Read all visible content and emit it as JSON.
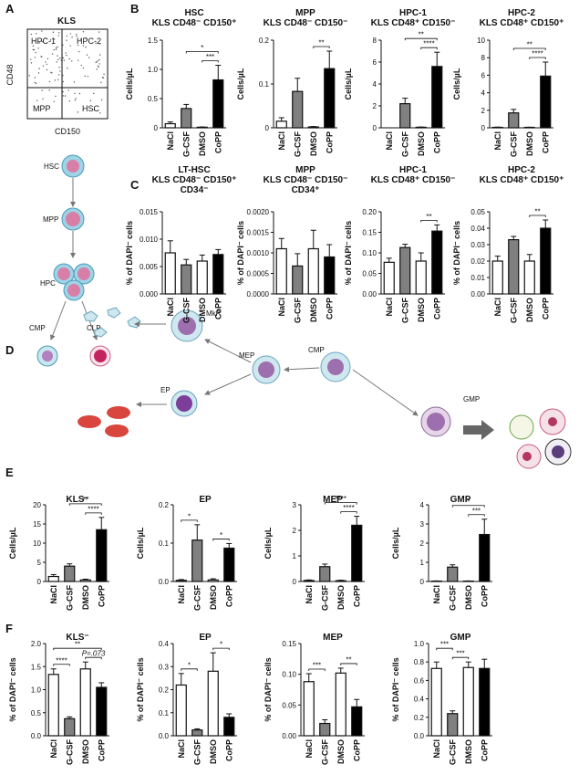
{
  "panel_a": {
    "panel": "A",
    "title": "KLS",
    "quadrants": [
      "HPC-1",
      "HPC-2",
      "MPP",
      "HSC"
    ],
    "y_label": "CD48",
    "x_label": "CD150",
    "hierarchy": [
      "HSC",
      "MPP",
      "HPC",
      "CMP",
      "CLP"
    ]
  },
  "panel_d": {
    "panel": "D",
    "cells": [
      "MkP",
      "MEP",
      "CMP",
      "EP",
      "GMP"
    ]
  },
  "chart_data": [
    {
      "type": "bar",
      "panel": "B",
      "title": [
        "HSC",
        "KLS CD48⁻ CD150⁺"
      ],
      "y_label": "Cells/µL",
      "categories": [
        "NaCl",
        "G-CSF",
        "DMSO",
        "CoPP"
      ],
      "values": [
        0.07,
        0.33,
        0.01,
        0.82
      ],
      "errors": [
        0.03,
        0.07,
        0.005,
        0.25
      ],
      "colors": [
        "#ffffff",
        "#808080",
        "#ffffff",
        "#000000"
      ],
      "ylim": [
        0,
        1.5
      ],
      "yticks": [
        0,
        0.5,
        {
          "value": 1,
          "label": "1.0"
        },
        1.5
      ],
      "significance": [
        {
          "label": "*",
          "pair": [
            "G-CSF",
            "CoPP"
          ]
        },
        {
          "label": "***",
          "pair": [
            "DMSO",
            "CoPP"
          ]
        }
      ]
    },
    {
      "type": "bar",
      "title": [
        "MPP",
        "KLS CD48⁻ CD150⁻"
      ],
      "y_label": "Cells/µL",
      "categories": [
        "NaCl",
        "G-CSF",
        "DMSO",
        "CoPP"
      ],
      "values": [
        0.015,
        0.083,
        0.002,
        0.135
      ],
      "errors": [
        0.008,
        0.03,
        0.001,
        0.04
      ],
      "colors": [
        "#ffffff",
        "#808080",
        "#ffffff",
        "#000000"
      ],
      "ylim": [
        0,
        0.2
      ],
      "yticks": [
        0,
        0.1,
        0.2
      ],
      "significance": [
        {
          "label": "**",
          "pair": [
            "DMSO",
            "CoPP"
          ]
        }
      ]
    },
    {
      "type": "bar",
      "title": [
        "HPC-1",
        "KLS CD48⁺ CD150⁻"
      ],
      "y_label": "Cells/µL",
      "categories": [
        "NaCl",
        "G-CSF",
        "DMSO",
        "CoPP"
      ],
      "values": [
        0,
        2.2,
        0.05,
        5.6
      ],
      "errors": [
        0,
        0.5,
        0.02,
        1.3
      ],
      "colors": [
        "#ffffff",
        "#808080",
        "#ffffff",
        "#000000"
      ],
      "ylim": [
        0,
        8
      ],
      "yticks": [
        0,
        2,
        4,
        6,
        8
      ],
      "significance": [
        {
          "label": "**",
          "pair": [
            "G-CSF",
            "CoPP"
          ]
        },
        {
          "label": "****",
          "pair": [
            "DMSO",
            "CoPP"
          ]
        }
      ]
    },
    {
      "type": "bar",
      "title": [
        "HPC-2",
        "KLS CD48⁺ CD150⁺"
      ],
      "y_label": "Cells/µL",
      "categories": [
        "NaCl",
        "G-CSF",
        "DMSO",
        "CoPP"
      ],
      "values": [
        0.05,
        1.7,
        0.05,
        5.9
      ],
      "errors": [
        0.03,
        0.4,
        0.02,
        1.6
      ],
      "colors": [
        "#ffffff",
        "#808080",
        "#ffffff",
        "#000000"
      ],
      "ylim": [
        0,
        10
      ],
      "yticks": [
        0,
        2,
        4,
        6,
        8,
        10
      ],
      "significance": [
        {
          "label": "**",
          "pair": [
            "G-CSF",
            "CoPP"
          ]
        },
        {
          "label": "****",
          "pair": [
            "DMSO",
            "CoPP"
          ]
        }
      ]
    },
    {
      "type": "bar",
      "panel": "C",
      "title": [
        "LT-HSC",
        "KLS CD48⁻ CD150⁺",
        "CD34⁻"
      ],
      "y_label": "% of DAPI⁻ cells",
      "categories": [
        "NaCl",
        "G-CSF",
        "DMSO",
        "CoPP"
      ],
      "values": [
        0.0075,
        0.0053,
        0.006,
        0.0072
      ],
      "errors": [
        0.0022,
        0.001,
        0.0011,
        0.0009
      ],
      "colors": [
        "#ffffff",
        "#808080",
        "#ffffff",
        "#000000"
      ],
      "ylim": [
        0,
        0.015
      ],
      "yticks": [
        {
          "value": 0,
          "label": "0.000"
        },
        0.005,
        {
          "value": 0.01,
          "label": "0.010"
        },
        0.015
      ],
      "significance": []
    },
    {
      "type": "bar",
      "title": [
        "MPP",
        "KLS CD48⁻ CD150⁻",
        "CD34⁺"
      ],
      "y_label": "% of DAPI⁻ cells",
      "categories": [
        "NaCl",
        "G-CSF",
        "DMSO",
        "CoPP"
      ],
      "values": [
        0.0011,
        0.00068,
        0.0011,
        0.0009
      ],
      "errors": [
        0.00025,
        0.0003,
        0.00045,
        0.0003
      ],
      "colors": [
        "#ffffff",
        "#808080",
        "#ffffff",
        "#000000"
      ],
      "ylim": [
        0,
        0.002
      ],
      "yticks": [
        {
          "value": 0,
          "label": "0.0000"
        },
        0.0005,
        {
          "value": 0.001,
          "label": "0.0010"
        },
        0.0015,
        {
          "value": 0.002,
          "label": "0.0020"
        }
      ],
      "significance": []
    },
    {
      "type": "bar",
      "title": [
        "HPC-1",
        "KLS CD48⁺ CD150⁻"
      ],
      "y_label": "% of DAPI⁻ cells",
      "categories": [
        "NaCl",
        "G-CSF",
        "DMSO",
        "CoPP"
      ],
      "values": [
        0.077,
        0.113,
        0.08,
        0.153
      ],
      "errors": [
        0.01,
        0.008,
        0.02,
        0.015
      ],
      "colors": [
        "#ffffff",
        "#808080",
        "#ffffff",
        "#000000"
      ],
      "ylim": [
        0,
        0.2
      ],
      "yticks": [
        {
          "value": 0,
          "label": "0.00"
        },
        0.05,
        {
          "value": 0.1,
          "label": "0.10"
        },
        0.15,
        {
          "value": 0.2,
          "label": "0.20"
        }
      ],
      "significance": [
        {
          "label": "**",
          "pair": [
            "DMSO",
            "CoPP"
          ]
        }
      ]
    },
    {
      "type": "bar",
      "title": [
        "HPC-2",
        "KLS CD48⁺ CD150⁺"
      ],
      "y_label": "% of DAPI⁻ cells",
      "categories": [
        "NaCl",
        "G-CSF",
        "DMSO",
        "CoPP"
      ],
      "values": [
        0.02,
        0.033,
        0.02,
        0.04
      ],
      "errors": [
        0.003,
        0.002,
        0.004,
        0.005
      ],
      "colors": [
        "#ffffff",
        "#808080",
        "#ffffff",
        "#000000"
      ],
      "ylim": [
        0,
        0.05
      ],
      "yticks": [
        {
          "value": 0,
          "label": "0.00"
        },
        0.01,
        0.02,
        0.03,
        0.04,
        0.05
      ],
      "significance": [
        {
          "label": "**",
          "pair": [
            "DMSO",
            "CoPP"
          ]
        }
      ]
    },
    {
      "type": "bar",
      "panel": "E",
      "title": [
        "KLS⁻"
      ],
      "y_label": "Cells/µL",
      "categories": [
        "NaCl",
        "G-CSF",
        "DMSO",
        "CoPP"
      ],
      "values": [
        1.3,
        4.0,
        0.4,
        13.5
      ],
      "errors": [
        0.5,
        0.6,
        0.2,
        3.2
      ],
      "colors": [
        "#ffffff",
        "#808080",
        "#ffffff",
        "#000000"
      ],
      "ylim": [
        0,
        20
      ],
      "yticks": [
        0,
        5,
        10,
        15,
        20
      ],
      "significance": [
        {
          "label": "**",
          "pair": [
            "G-CSF",
            "CoPP"
          ]
        },
        {
          "label": "****",
          "pair": [
            "DMSO",
            "CoPP"
          ]
        }
      ]
    },
    {
      "type": "bar",
      "title": [
        "EP"
      ],
      "y_label": "Cells/µL",
      "categories": [
        "NaCl",
        "G-CSF",
        "DMSO",
        "CoPP"
      ],
      "values": [
        0.003,
        0.108,
        0.004,
        0.087
      ],
      "errors": [
        0.002,
        0.04,
        0.003,
        0.012
      ],
      "colors": [
        "#ffffff",
        "#808080",
        "#ffffff",
        "#000000"
      ],
      "ylim": [
        0,
        0.2
      ],
      "yticks": [
        {
          "value": 0,
          "label": "0.0"
        },
        0.1,
        0.2
      ],
      "significance": [
        {
          "label": "*",
          "pair": [
            "NaCl",
            "G-CSF"
          ]
        },
        {
          "label": "*",
          "pair": [
            "DMSO",
            "CoPP"
          ]
        }
      ]
    },
    {
      "type": "bar",
      "title": [
        "MEP"
      ],
      "y_label": "Cells/µL",
      "categories": [
        "NaCl",
        "G-CSF",
        "DMSO",
        "CoPP"
      ],
      "values": [
        0.04,
        0.58,
        0.03,
        2.2
      ],
      "errors": [
        0.02,
        0.1,
        0.02,
        0.35
      ],
      "colors": [
        "#ffffff",
        "#808080",
        "#ffffff",
        "#000000"
      ],
      "ylim": [
        0,
        3
      ],
      "yticks": [
        0,
        1,
        2,
        3
      ],
      "significance": [
        {
          "label": "****",
          "pair": [
            "G-CSF",
            "CoPP"
          ]
        },
        {
          "label": "****",
          "pair": [
            "DMSO",
            "CoPP"
          ]
        }
      ]
    },
    {
      "type": "bar",
      "title": [
        "GMP"
      ],
      "y_label": "Cells/µL",
      "categories": [
        "NaCl",
        "G-CSF",
        "DMSO",
        "CoPP"
      ],
      "values": [
        0.02,
        0.75,
        0.02,
        2.45
      ],
      "errors": [
        0.01,
        0.12,
        0.01,
        0.8
      ],
      "colors": [
        "#ffffff",
        "#808080",
        "#ffffff",
        "#000000"
      ],
      "ylim": [
        0,
        4
      ],
      "yticks": [
        0,
        1,
        2,
        3,
        4
      ],
      "significance": [
        {
          "label": "*",
          "pair": [
            "G-CSF",
            "CoPP"
          ]
        },
        {
          "label": "***",
          "pair": [
            "DMSO",
            "CoPP"
          ]
        }
      ]
    },
    {
      "type": "bar",
      "panel": "F",
      "title": [
        "KLS⁻"
      ],
      "y_label": "% of DAPI⁻ cells",
      "categories": [
        "NaCl",
        "G-CSF",
        "DMSO",
        "CoPP"
      ],
      "values": [
        1.33,
        0.37,
        1.45,
        1.05
      ],
      "errors": [
        0.12,
        0.04,
        0.15,
        0.1
      ],
      "colors": [
        "#ffffff",
        "#808080",
        "#ffffff",
        "#000000"
      ],
      "ylim": [
        0,
        2
      ],
      "yticks": [
        {
          "value": 0,
          "label": "0.0"
        },
        0.5,
        {
          "value": 1,
          "label": "1.0"
        },
        1.5,
        {
          "value": 2,
          "label": "2.0"
        }
      ],
      "significance": [
        {
          "label": "**",
          "pair": [
            "NaCl",
            "CoPP"
          ]
        },
        {
          "label": "****",
          "pair": [
            "NaCl",
            "G-CSF"
          ]
        },
        {
          "label": "P=.073",
          "pair": [
            "DMSO",
            "CoPP"
          ]
        }
      ]
    },
    {
      "type": "bar",
      "title": [
        "EP"
      ],
      "y_label": "% of DAPI⁻ cells",
      "categories": [
        "NaCl",
        "G-CSF",
        "DMSO",
        "CoPP"
      ],
      "values": [
        0.22,
        0.025,
        0.28,
        0.08
      ],
      "errors": [
        0.05,
        0.005,
        0.08,
        0.015
      ],
      "colors": [
        "#ffffff",
        "#808080",
        "#ffffff",
        "#000000"
      ],
      "ylim": [
        0,
        0.4
      ],
      "yticks": [
        {
          "value": 0,
          "label": "0.0"
        },
        0.1,
        0.2,
        0.3,
        0.4
      ],
      "significance": [
        {
          "label": "*",
          "pair": [
            "NaCl",
            "G-CSF"
          ]
        },
        {
          "label": "*",
          "pair": [
            "DMSO",
            "CoPP"
          ]
        }
      ]
    },
    {
      "type": "bar",
      "title": [
        "MEP"
      ],
      "y_label": "% of DAPI⁻ cells",
      "categories": [
        "NaCl",
        "G-CSF",
        "DMSO",
        "CoPP"
      ],
      "values": [
        0.088,
        0.02,
        0.102,
        0.047
      ],
      "errors": [
        0.013,
        0.006,
        0.008,
        0.012
      ],
      "colors": [
        "#ffffff",
        "#808080",
        "#ffffff",
        "#000000"
      ],
      "ylim": [
        0,
        0.15
      ],
      "yticks": [
        {
          "value": 0,
          "label": "0.00"
        },
        0.05,
        {
          "value": 0.1,
          "label": "0.10"
        },
        0.15
      ],
      "significance": [
        {
          "label": "***",
          "pair": [
            "NaCl",
            "G-CSF"
          ]
        },
        {
          "label": "**",
          "pair": [
            "DMSO",
            "CoPP"
          ]
        }
      ]
    },
    {
      "type": "bar",
      "title": [
        "GMP"
      ],
      "y_label": "% of DAPI⁻ cells",
      "categories": [
        "NaCl",
        "G-CSF",
        "DMSO",
        "CoPP"
      ],
      "values": [
        0.73,
        0.24,
        0.74,
        0.73
      ],
      "errors": [
        0.07,
        0.03,
        0.06,
        0.1
      ],
      "colors": [
        "#ffffff",
        "#808080",
        "#ffffff",
        "#000000"
      ],
      "ylim": [
        0,
        1
      ],
      "yticks": [
        {
          "value": 0,
          "label": "0.0"
        },
        0.2,
        0.4,
        0.6,
        0.8,
        {
          "value": 1,
          "label": "1.0"
        }
      ],
      "significance": [
        {
          "label": "***",
          "pair": [
            "NaCl",
            "G-CSF"
          ]
        },
        {
          "label": "***",
          "pair": [
            "G-CSF",
            "DMSO"
          ]
        }
      ]
    }
  ]
}
